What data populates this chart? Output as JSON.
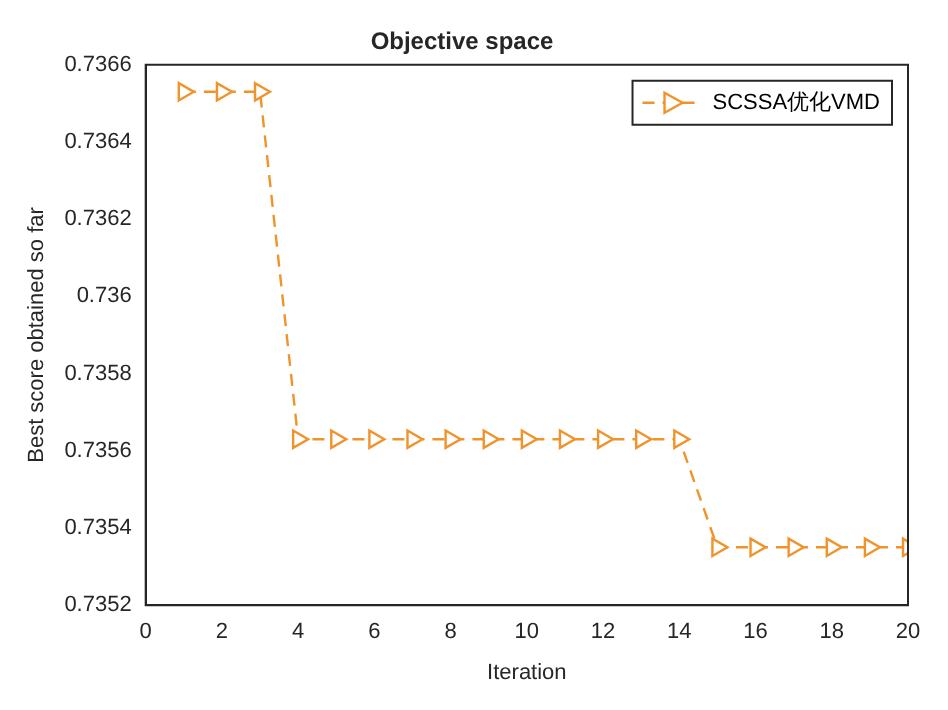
{
  "chart_data": {
    "type": "line",
    "title": "Objective space",
    "xlabel": "Iteration",
    "ylabel": "Best score obtained so far",
    "x": [
      1,
      2,
      3,
      4,
      5,
      6,
      7,
      8,
      9,
      10,
      11,
      12,
      13,
      14,
      15,
      16,
      17,
      18,
      19,
      20
    ],
    "series": [
      {
        "name": "SCSSA优化VMD",
        "color": "#f0932a",
        "values": [
          0.73653,
          0.73653,
          0.73653,
          0.73563,
          0.73563,
          0.73563,
          0.73563,
          0.73563,
          0.73563,
          0.73563,
          0.73563,
          0.73563,
          0.73563,
          0.73563,
          0.73535,
          0.73535,
          0.73535,
          0.73535,
          0.73535,
          0.73535
        ]
      }
    ],
    "xlim": [
      0,
      20
    ],
    "xticks": [
      0,
      2,
      4,
      6,
      8,
      10,
      12,
      14,
      16,
      18,
      20
    ],
    "ylim": [
      0.7352,
      0.7366
    ],
    "yticks": [
      0.7352,
      0.7354,
      0.7356,
      0.7358,
      0.736,
      0.7362,
      0.7364,
      0.7366
    ],
    "grid": false,
    "legend": "top right",
    "marker": "triangle",
    "line_style": "dashed"
  }
}
